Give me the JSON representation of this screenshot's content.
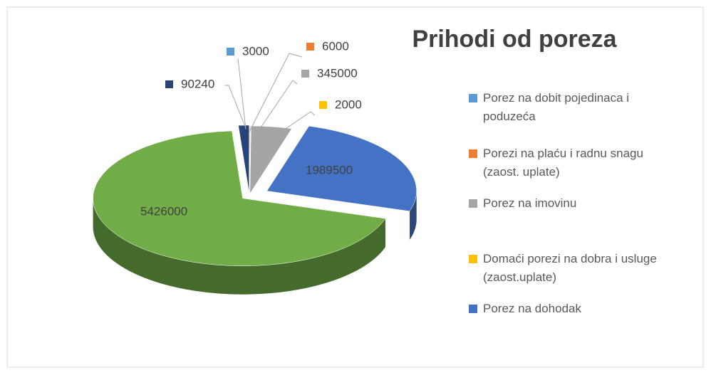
{
  "chart_data": {
    "type": "pie",
    "title": "Prihodi od poreza",
    "categories": [
      "Porez na dobit pojedinaca i poduzeća",
      "Porezi na plaću i radnu snagu (zaost. uplate)",
      "Porez na imovinu",
      "Domaći porezi na dobra i usluge (zaost.uplate)",
      "Porez na dohodak",
      null,
      null
    ],
    "values": [
      3000,
      6000,
      345000,
      2000,
      1989500,
      5426000,
      90240
    ],
    "colors": [
      "#5b9bd5",
      "#ed7d31",
      "#a5a5a5",
      "#ffc000",
      "#4472c4",
      "#70ad47",
      "#264478"
    ],
    "legend": "right"
  }
}
